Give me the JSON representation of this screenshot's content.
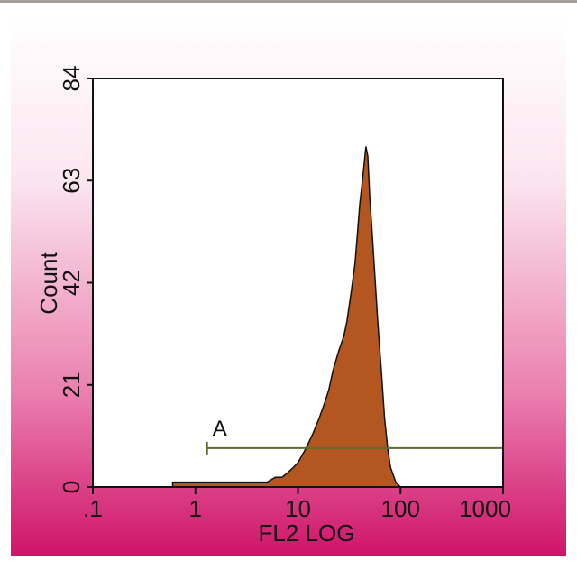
{
  "chart_data": {
    "type": "area",
    "xlabel": "FL2 LOG",
    "ylabel": "Count",
    "x": [
      0.6,
      0.7,
      0.8,
      4,
      5,
      6,
      7,
      8,
      9,
      10,
      12,
      14,
      16,
      18,
      20,
      22,
      25,
      28,
      30,
      33,
      36,
      38,
      40,
      42,
      44,
      46,
      48,
      50,
      53,
      56,
      60,
      65,
      70,
      75,
      80,
      90,
      100
    ],
    "values": [
      1,
      1,
      1,
      1,
      1,
      2,
      2,
      3,
      4,
      5,
      8,
      11,
      14,
      17,
      20,
      24,
      28,
      31,
      34,
      40,
      46,
      52,
      58,
      62,
      66,
      70,
      68,
      60,
      52,
      44,
      34,
      24,
      14,
      8,
      4,
      1,
      0
    ],
    "color": "#b4561f",
    "xscale": "log",
    "xlim": [
      0.1,
      1000
    ],
    "xticks": [
      {
        "value": 0.1,
        "label": ".1"
      },
      1,
      10,
      100,
      1000
    ],
    "ylim": [
      0,
      84
    ],
    "yticks": [
      0,
      21,
      42,
      63,
      84
    ],
    "gate": {
      "label": "A",
      "x": [
        1.3,
        1000
      ],
      "y": 8,
      "color": "#5a6e2e"
    }
  }
}
